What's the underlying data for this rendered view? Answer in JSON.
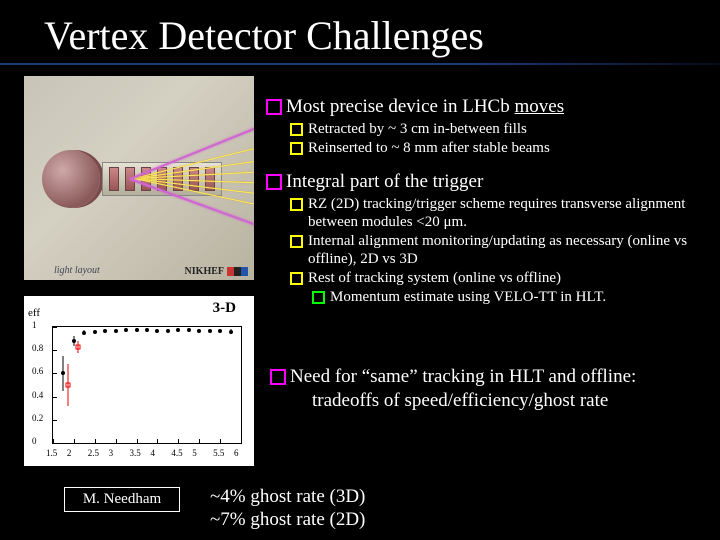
{
  "title": "Vertex Detector Challenges",
  "detector": {
    "label_light": "light layout",
    "logo": "NIKHEF",
    "logo_colors": [
      "#cc3333",
      "#222222",
      "#2255aa"
    ]
  },
  "plot": {
    "title": "3-D",
    "ylabel": "eff",
    "ylim": [
      0,
      1
    ],
    "ytick_step": 0.2,
    "xlim": [
      1.5,
      6.0
    ],
    "xtick_step": 0.5,
    "background_color": "#ffffff",
    "series": [
      {
        "name": "black",
        "color": "#000000",
        "marker": "filled-circle",
        "points": [
          {
            "x": 1.75,
            "y": 0.6,
            "ey": 0.15
          },
          {
            "x": 2.0,
            "y": 0.88,
            "ey": 0.04
          },
          {
            "x": 2.25,
            "y": 0.95,
            "ey": 0.02
          },
          {
            "x": 2.5,
            "y": 0.96,
            "ey": 0.01
          },
          {
            "x": 2.75,
            "y": 0.965,
            "ey": 0.01
          },
          {
            "x": 3.0,
            "y": 0.965,
            "ey": 0.01
          },
          {
            "x": 3.25,
            "y": 0.97,
            "ey": 0.01
          },
          {
            "x": 3.5,
            "y": 0.97,
            "ey": 0.01
          },
          {
            "x": 3.75,
            "y": 0.97,
            "ey": 0.01
          },
          {
            "x": 4.0,
            "y": 0.965,
            "ey": 0.01
          },
          {
            "x": 4.25,
            "y": 0.965,
            "ey": 0.01
          },
          {
            "x": 4.5,
            "y": 0.97,
            "ey": 0.01
          },
          {
            "x": 4.75,
            "y": 0.97,
            "ey": 0.01
          },
          {
            "x": 5.0,
            "y": 0.965,
            "ey": 0.01
          },
          {
            "x": 5.25,
            "y": 0.965,
            "ey": 0.01
          },
          {
            "x": 5.5,
            "y": 0.965,
            "ey": 0.015
          },
          {
            "x": 5.75,
            "y": 0.96,
            "ey": 0.02
          }
        ]
      },
      {
        "name": "red",
        "color": "#ee0000",
        "marker": "open-square",
        "points": [
          {
            "x": 1.85,
            "y": 0.5,
            "ey": 0.18
          },
          {
            "x": 2.1,
            "y": 0.83,
            "ey": 0.05
          }
        ]
      }
    ]
  },
  "bullets": {
    "l1_a": "Most precise device in LHCb ",
    "l1_a_ul": "moves",
    "l2_a1": "Retracted by ~ 3 cm in-between fills",
    "l2_a2": "Reinserted to ~ 8 mm after stable beams",
    "l1_b": "Integral part of the trigger",
    "l2_b1": "RZ (2D) tracking/trigger scheme requires transverse alignment between modules <20 μm.",
    "l2_b2": "Internal alignment monitoring/updating as necessary (online vs offline), 2D vs 3D",
    "l2_b3": "Rest of tracking system (online vs offline)",
    "l3_b3a": "Momentum estimate using VELO-TT in HLT.",
    "l1_c_a": "Need for “same” tracking in HLT and offline:",
    "l1_c_b": "tradeoffs of speed/efficiency/ghost rate"
  },
  "bottom": {
    "line1": "~4% ghost rate (3D)",
    "line2": "~7% ghost rate (2D)"
  },
  "author_box": "M. Needham"
}
